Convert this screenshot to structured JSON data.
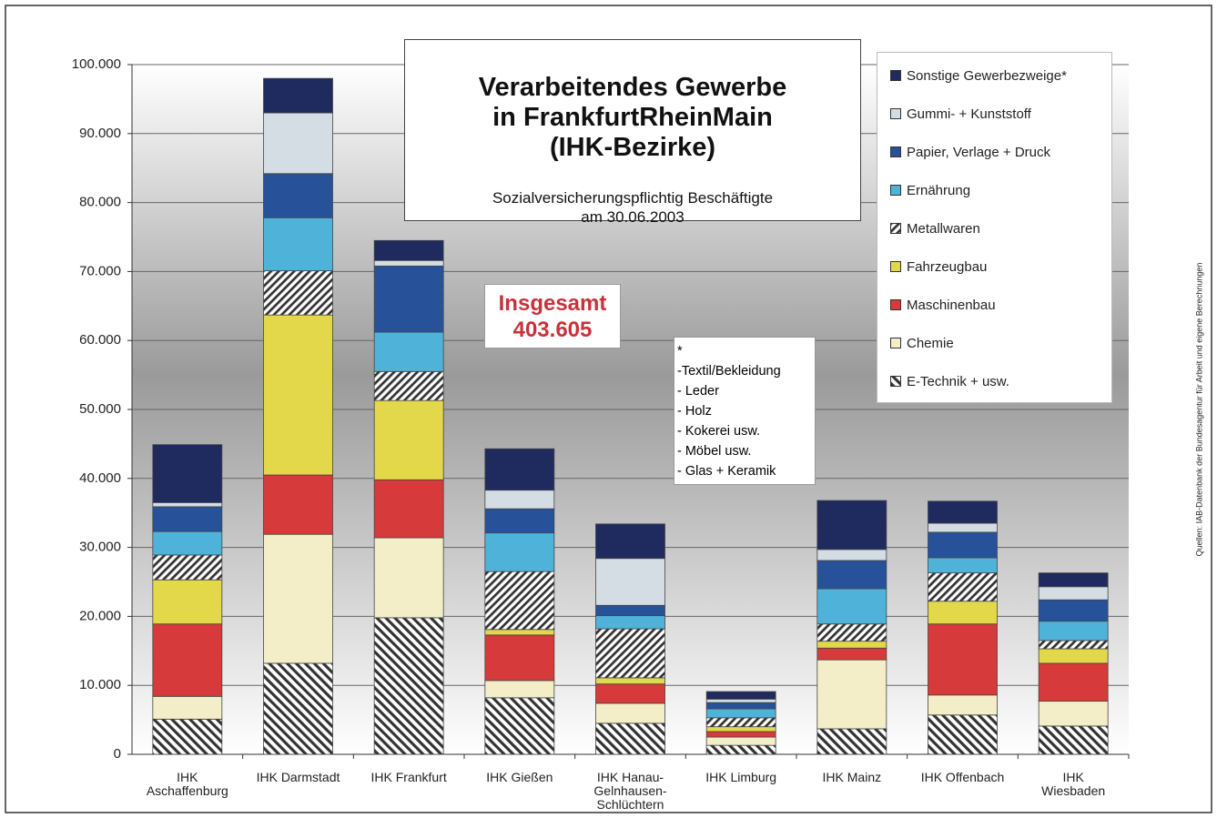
{
  "chart_data": {
    "type": "stacked_bar",
    "title": "Verarbeitendes Gewerbe\nin FrankfurtRheinMain\n(IHK-Bezirke)",
    "subtitle": "Sozialversicherungspflichtig Beschäftigte\nam 30.06.2003",
    "annotation": {
      "label": "Insgesamt",
      "value": "403.605"
    },
    "footnote": [
      "*",
      "-Textil/Bekleidung",
      "- Leder",
      "- Holz",
      "- Kokerei usw.",
      "- Möbel usw.",
      "- Glas + Keramik"
    ],
    "source": "Quellen: IAB-Datenbank der Bundesagentur für Arbeit und eigene Berechnungen",
    "categories": [
      "IHK\nAschaffenburg",
      "IHK Darmstadt",
      "IHK Frankfurt",
      "IHK Gießen",
      "IHK Hanau-\nGelnhausen-\nSchlüchtern",
      "IHK Limburg",
      "IHK Mainz",
      "IHK Offenbach",
      "IHK\nWiesbaden"
    ],
    "series": [
      {
        "name": "E-Technik + usw.",
        "color": "#333333",
        "hatch": "back",
        "values": [
          5100,
          13200,
          19800,
          8200,
          4500,
          1300,
          3700,
          5700,
          4100
        ]
      },
      {
        "name": "Chemie",
        "color": "#f3eec8",
        "values": [
          3300,
          18700,
          11600,
          2500,
          2900,
          1200,
          10000,
          2900,
          3600
        ]
      },
      {
        "name": "Maschinenbau",
        "color": "#d63a3a",
        "values": [
          10500,
          8600,
          8400,
          6600,
          2800,
          800,
          1700,
          10300,
          5500
        ]
      },
      {
        "name": "Fahrzeugbau",
        "color": "#e3d84a",
        "values": [
          6400,
          23200,
          11500,
          800,
          900,
          700,
          1000,
          3300,
          2100
        ]
      },
      {
        "name": "Metallwaren",
        "color": "#333333",
        "hatch": "forward",
        "values": [
          3600,
          6400,
          4200,
          8400,
          7100,
          1300,
          2500,
          4100,
          1200
        ]
      },
      {
        "name": "Ernährung",
        "color": "#4fb3d9",
        "values": [
          3400,
          7700,
          5700,
          5600,
          1900,
          1300,
          5100,
          2200,
          2800
        ]
      },
      {
        "name": "Papier, Verlage + Druck",
        "color": "#27529a",
        "values": [
          3600,
          6400,
          9600,
          3500,
          1500,
          900,
          4100,
          3700,
          3100
        ]
      },
      {
        "name": "Gummi- + Kunststoff",
        "color": "#d3dde3",
        "values": [
          600,
          8800,
          800,
          2700,
          6800,
          500,
          1600,
          1300,
          1900
        ]
      },
      {
        "name": "Sonstige Gewerbezweige*",
        "color": "#1f2a5e",
        "values": [
          8400,
          5000,
          2900,
          6000,
          5000,
          1100,
          7100,
          3200,
          2000
        ]
      }
    ],
    "ylim": [
      0,
      100000
    ],
    "yticks": [
      0,
      {
        "value": 10000,
        "label": "10.000"
      },
      {
        "value": 20000,
        "label": "20.000"
      },
      {
        "value": 30000,
        "label": "30.000"
      },
      {
        "value": 40000,
        "label": "40.000"
      },
      {
        "value": 50000,
        "label": "50.000"
      },
      {
        "value": 60000,
        "label": "60.000"
      },
      {
        "value": 70000,
        "label": "70.000"
      },
      {
        "value": 80000,
        "label": "80.000"
      },
      {
        "value": 90000,
        "label": "90.000"
      },
      {
        "value": 100000,
        "label": "100.000"
      }
    ],
    "grid": true
  }
}
